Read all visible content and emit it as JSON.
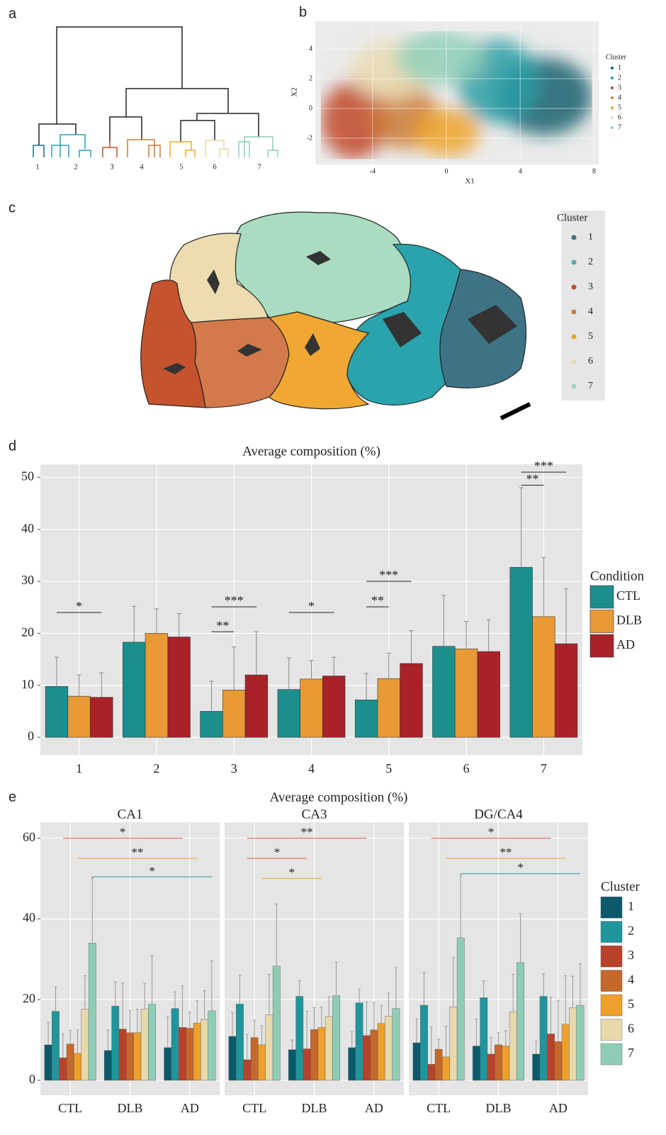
{
  "panel_labels": [
    "a",
    "b",
    "c",
    "d",
    "e"
  ],
  "dendrogram": {
    "leaf_labels": [
      "1",
      "2",
      "3",
      "4",
      "5",
      "6",
      "7"
    ]
  },
  "diagram": {
    "legend_title": "Cluster",
    "clusters": [
      "1",
      "2",
      "3",
      "4",
      "5",
      "6",
      "7"
    ]
  },
  "chart_data": [
    {
      "type": "scatter",
      "xlabel": "X1",
      "ylabel": "X2",
      "xlim": [
        -7.1,
        8.25
      ],
      "xticks": [
        -4,
        0,
        4,
        8
      ],
      "ylim": [
        -3.76,
        5.86
      ],
      "yticks": [
        -2,
        0,
        2,
        4
      ],
      "grid": true,
      "legend_title": "Cluster",
      "series": [
        {
          "name": "1",
          "color": "#15606f"
        },
        {
          "name": "2",
          "color": "#2a9ea6"
        },
        {
          "name": "3",
          "color": "#c2482a"
        },
        {
          "name": "4",
          "color": "#cc7a35"
        },
        {
          "name": "5",
          "color": "#efa52e"
        },
        {
          "name": "6",
          "color": "#e9dbb0"
        },
        {
          "name": "7",
          "color": "#90d0b8"
        }
      ]
    },
    {
      "type": "bar",
      "title": "Average composition (%)",
      "categories": [
        "1",
        "2",
        "3",
        "4",
        "5",
        "6",
        "7"
      ],
      "ylim": [
        -3.4,
        52.5
      ],
      "yticks": [
        0,
        10,
        20,
        30,
        40,
        50
      ],
      "grid": true,
      "legend_title": "Condition",
      "series": [
        {
          "name": "CTL",
          "color": "#1b8f8e",
          "values": [
            9.8,
            18.3,
            5.0,
            9.2,
            7.2,
            17.5,
            32.7
          ],
          "errors": [
            5.6,
            6.9,
            5.8,
            6.1,
            5.1,
            9.8,
            15.3
          ]
        },
        {
          "name": "DLB",
          "color": "#e99a35",
          "values": [
            7.9,
            20.0,
            9.1,
            11.2,
            11.3,
            17.0,
            23.2
          ],
          "errors": [
            4.1,
            4.7,
            8.3,
            3.6,
            4.9,
            5.3,
            11.4
          ]
        },
        {
          "name": "AD",
          "color": "#a82228",
          "values": [
            7.7,
            19.3,
            12.0,
            11.8,
            14.2,
            16.5,
            18.0
          ],
          "errors": [
            4.7,
            4.5,
            8.3,
            3.6,
            6.3,
            6.1,
            10.6
          ]
        }
      ],
      "annotations": [
        {
          "text": "*",
          "category": "1",
          "between": [
            "CTL",
            "AD"
          ],
          "y": 24
        },
        {
          "text": "**",
          "category": "3",
          "between": [
            "CTL",
            "DLB"
          ],
          "y": 20.3
        },
        {
          "text": "***",
          "category": "3",
          "between": [
            "CTL",
            "AD"
          ],
          "y": 25.1
        },
        {
          "text": "*",
          "category": "4",
          "between": [
            "CTL",
            "AD"
          ],
          "y": 24
        },
        {
          "text": "**",
          "category": "5",
          "between": [
            "CTL",
            "DLB"
          ],
          "y": 25.1
        },
        {
          "text": "***",
          "category": "5",
          "between": [
            "CTL",
            "AD"
          ],
          "y": 30
        },
        {
          "text": "**",
          "category": "7",
          "between": [
            "CTL",
            "DLB"
          ],
          "y": 48.5
        },
        {
          "text": "***",
          "category": "7",
          "between": [
            "CTL",
            "AD"
          ],
          "y": 51
        }
      ]
    },
    {
      "type": "facet_bar",
      "title": "Average composition (%)",
      "categories": [
        "CTL",
        "DLB",
        "AD"
      ],
      "ylim": [
        -3.7,
        63.9
      ],
      "yticks": [
        0,
        20,
        40,
        60
      ],
      "grid": true,
      "legend_title": "Cluster",
      "series": [
        {
          "name": "1",
          "color": "#0b5a6b"
        },
        {
          "name": "2",
          "color": "#1e969c"
        },
        {
          "name": "3",
          "color": "#b9412b"
        },
        {
          "name": "4",
          "color": "#c4682c"
        },
        {
          "name": "5",
          "color": "#eea02a"
        },
        {
          "name": "6",
          "color": "#e8d9ab"
        },
        {
          "name": "7",
          "color": "#8ecdb5"
        }
      ],
      "facets": [
        {
          "title": "CA1",
          "values": [
            [
              8.8,
              7.4,
              8.1
            ],
            [
              17.1,
              18.4,
              17.8
            ],
            [
              5.6,
              12.7,
              13.1
            ],
            [
              9.0,
              11.8,
              12.9
            ],
            [
              6.7,
              11.8,
              14.2
            ],
            [
              17.6,
              17.7,
              15.1
            ],
            [
              34.0,
              18.8,
              17.2
            ]
          ],
          "errors": [
            [
              5.6,
              5.1,
              7.7
            ],
            [
              6.0,
              6.0,
              4.1
            ],
            [
              5.9,
              11.4,
              10.3
            ],
            [
              3.4,
              5.5,
              4.0
            ],
            [
              5.8,
              5.8,
              5.5
            ],
            [
              8.3,
              6.3,
              7.1
            ],
            [
              16.2,
              12.1,
              12.4
            ]
          ],
          "annotations": [
            {
              "text": "*",
              "cluster": "3",
              "between": [
                "CTL",
                "AD"
              ],
              "y": 60,
              "color": "#e0603a"
            },
            {
              "text": "**",
              "cluster": "5",
              "between": [
                "CTL",
                "AD"
              ],
              "y": 55,
              "color": "#eea02a"
            },
            {
              "text": "*",
              "cluster": "7",
              "between": [
                "CTL",
                "AD"
              ],
              "y": 50.4,
              "color": "#2a9ea6"
            }
          ]
        },
        {
          "title": "CA3",
          "values": [
            [
              10.9,
              7.6,
              8.1
            ],
            [
              18.9,
              20.8,
              19.2
            ],
            [
              5.1,
              7.8,
              11.1
            ],
            [
              10.6,
              12.6,
              12.5
            ],
            [
              8.8,
              13.1,
              14.1
            ],
            [
              16.2,
              15.8,
              15.9
            ],
            [
              28.3,
              21.0,
              17.8
            ]
          ],
          "errors": [
            [
              5.9,
              2.4,
              3.9
            ],
            [
              7.1,
              3.9,
              3.4
            ],
            [
              6.3,
              9.3,
              8.3
            ],
            [
              4.3,
              5.4,
              6.8
            ],
            [
              4.7,
              5.0,
              4.4
            ],
            [
              10.1,
              4.9,
              5.7
            ],
            [
              15.4,
              8.3,
              10.1
            ]
          ],
          "annotations": [
            {
              "text": "**",
              "cluster": "3",
              "between": [
                "CTL",
                "AD"
              ],
              "y": 60,
              "color": "#e0603a"
            },
            {
              "text": "*",
              "cluster": "3",
              "between": [
                "CTL",
                "DLB"
              ],
              "y": 55,
              "color": "#e0603a"
            },
            {
              "text": "*",
              "cluster": "5",
              "between": [
                "CTL",
                "DLB"
              ],
              "y": 50,
              "color": "#eea02a"
            }
          ]
        },
        {
          "title": "DG/CA4",
          "values": [
            [
              9.3,
              8.5,
              6.5
            ],
            [
              18.6,
              20.5,
              20.8
            ],
            [
              4.0,
              6.5,
              11.5
            ],
            [
              7.7,
              8.8,
              9.6
            ],
            [
              5.8,
              8.5,
              13.9
            ],
            [
              18.2,
              17.0,
              18.0
            ],
            [
              35.3,
              29.2,
              18.6
            ]
          ],
          "errors": [
            [
              5.9,
              6.7,
              3.2
            ],
            [
              8.1,
              4.1,
              5.6
            ],
            [
              9.2,
              4.1,
              9.0
            ],
            [
              2.5,
              3.0,
              10.2
            ],
            [
              7.6,
              3.8,
              12.0
            ],
            [
              12.2,
              9.3,
              7.8
            ],
            [
              15.6,
              12.1,
              10.3
            ]
          ],
          "annotations": [
            {
              "text": "*",
              "cluster": "3",
              "between": [
                "CTL",
                "AD"
              ],
              "y": 60,
              "color": "#e0603a"
            },
            {
              "text": "**",
              "cluster": "5",
              "between": [
                "CTL",
                "AD"
              ],
              "y": 55,
              "color": "#eea02a"
            },
            {
              "text": "*",
              "cluster": "7",
              "between": [
                "CTL",
                "AD"
              ],
              "y": 51.2,
              "color": "#2a9ea6"
            }
          ]
        }
      ]
    }
  ]
}
